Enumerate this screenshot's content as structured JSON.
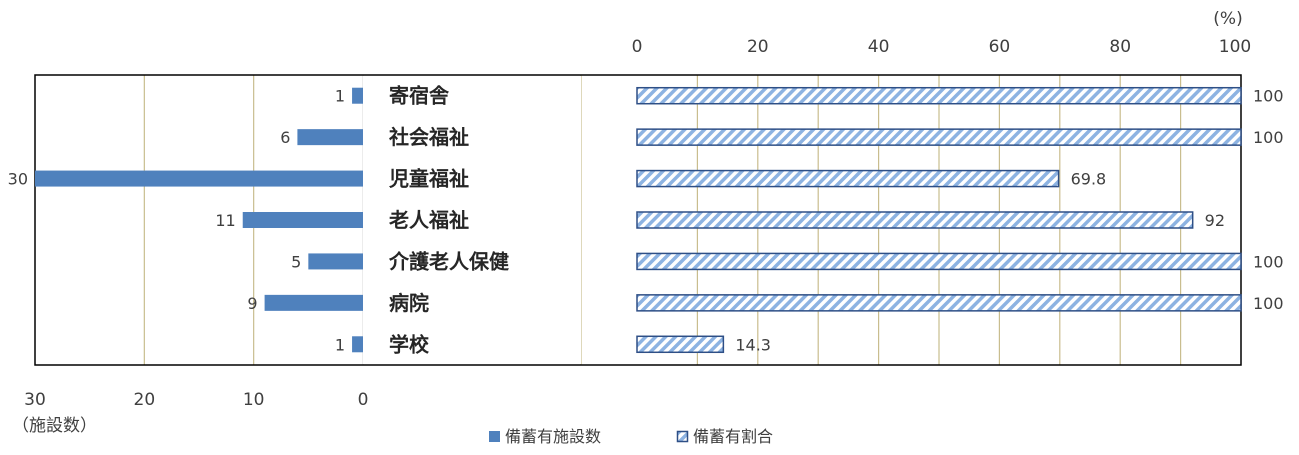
{
  "colors": {
    "count_bar": "#4f81bd",
    "ratio_outline": "#2e4f86",
    "ratio_hatch": "#8db3e2",
    "grid": "#c9bd8e",
    "frame": "#000000"
  },
  "chart_data": [
    {
      "type": "bar",
      "orientation": "horizontal",
      "direction": "right-to-left",
      "categories": [
        "寄宿舎",
        "社会福祉",
        "児童福祉",
        "老人福祉",
        "介護老人保健",
        "病院",
        "学校"
      ],
      "series": [
        {
          "name": "備蓄有施設数",
          "values": [
            1,
            6,
            30,
            11,
            5,
            9,
            1
          ]
        }
      ],
      "xlim": [
        0,
        30
      ],
      "ticks": [
        "30",
        "20",
        "10",
        "0"
      ],
      "xlabel": "（施設数）",
      "grid": true
    },
    {
      "type": "bar",
      "orientation": "horizontal",
      "categories": [
        "寄宿舎",
        "社会福祉",
        "児童福祉",
        "老人福祉",
        "介護老人保健",
        "病院",
        "学校"
      ],
      "series": [
        {
          "name": "備蓄有割合",
          "values": [
            100,
            100,
            69.8,
            92,
            100,
            100,
            14.3
          ]
        }
      ],
      "xlim": [
        0,
        100
      ],
      "ticks": [
        "0",
        "20",
        "40",
        "60",
        "80",
        "100"
      ],
      "unit_label": "(%)",
      "grid": true
    }
  ],
  "legend": {
    "position": "bottom-center",
    "items": [
      {
        "label": "備蓄有施設数",
        "style": "solid"
      },
      {
        "label": "備蓄有割合",
        "style": "hatched"
      }
    ]
  }
}
